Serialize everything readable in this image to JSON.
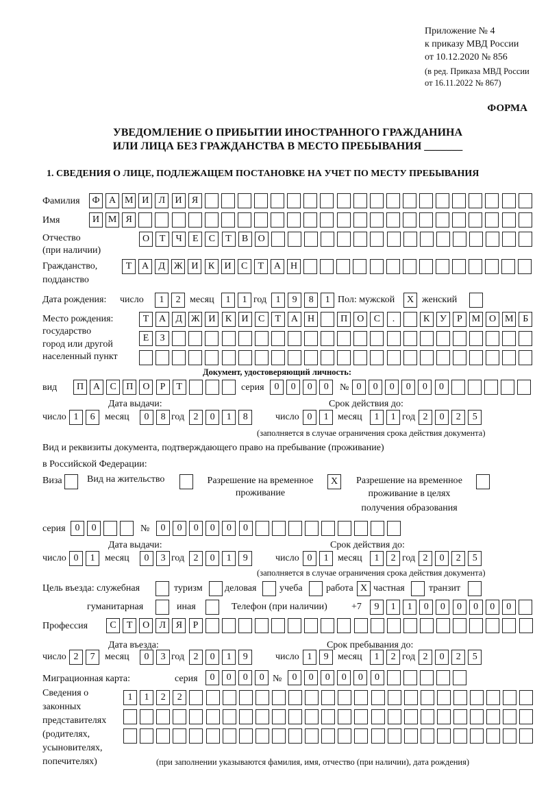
{
  "header": {
    "line1": "Приложение № 4",
    "line2": "к приказу МВД России",
    "line3": "от 10.12.2020 № 856",
    "line4": "(в ред. Приказа МВД России",
    "line5": "от 16.11.2022 № 867)"
  },
  "forma": "ФОРМА",
  "title": {
    "line1": "УВЕДОМЛЕНИЕ О ПРИБЫТИИ ИНОСТРАННОГО ГРАЖДАНИНА",
    "line2": "ИЛИ ЛИЦА БЕЗ ГРАЖДАНСТВА В МЕСТО ПРЕБЫВАНИЯ _______"
  },
  "section1": "1. СВЕДЕНИЯ О ЛИЦЕ, ПОДЛЕЖАЩЕМ ПОСТАНОВКЕ НА УЧЕТ ПО МЕСТУ ПРЕБЫВАНИЯ",
  "labels": {
    "surname": "Фамилия",
    "name": "Имя",
    "patronymic1": "Отчество",
    "patronymic2": "(при наличии)",
    "citizenship1": "Гражданство,",
    "citizenship2": "подданство",
    "birth_date": "Дата рождения:",
    "day": "число",
    "month": "месяц",
    "year": "год",
    "sex": "Пол: мужской",
    "female": "женский",
    "birthplace1": "Место рождения:",
    "birthplace2": "государство",
    "birthplace3": "город или другой",
    "birthplace4": "населенный пункт",
    "id_doc": "Документ, удостоверяющий личность:",
    "kind": "вид",
    "series": "серия",
    "number": "№",
    "issue_date": "Дата выдачи:",
    "valid_until": "Срок действия до:",
    "valid_note": "(заполняется в случае ограничения срока действия документа)",
    "right_doc1": "Вид и реквизиты документа, подтверждающего право на пребывание (проживание)",
    "right_doc2": "в Российской Федерации:",
    "visa": "Виза",
    "residence": "Вид на жительство",
    "temp1": "Разрешение на временное",
    "temp2": "проживание",
    "edu1": "Разрешение на временное",
    "edu2": "проживание в целях",
    "edu3": "получения образования",
    "purpose": "Цель въезда: служебная",
    "tourism": "туризм",
    "business": "деловая",
    "study": "учеба",
    "work": "работа",
    "private": "частная",
    "transit": "транзит",
    "humanitarian": "гуманитарная",
    "other": "иная",
    "phone": "Телефон (при наличии)",
    "phone_prefix": "+7",
    "profession": "Профессия",
    "entry_date": "Дата въезда:",
    "stay_until": "Срок пребывания до:",
    "migration_card": "Миграционная карта:",
    "reps1": "Сведения о",
    "reps2": "законных",
    "reps3": "представителях",
    "reps4": "(родителях,",
    "reps5": "усыновителях,",
    "reps6": "попечителях)",
    "reps_note": "(при заполнении указываются фамилия, имя, отчество (при наличии), дата рождения)"
  },
  "values": {
    "surname": "ФАМИЛИЯ",
    "name": "ИМЯ",
    "patronymic": "ОТЧЕСТВО",
    "citizenship": "ТАДЖИКИСТАН",
    "birth_day": "12",
    "birth_month": "11",
    "birth_year": "1981",
    "male": "X",
    "female": "",
    "birthplace_row1": "ТАДЖИКИСТАН ПОС. КУРМОМБ",
    "birthplace_row2": "ЕЗ",
    "birthplace_row3": "",
    "doc_kind": "ПАСПОРТ",
    "doc_series": "0000",
    "doc_number": "000000",
    "doc_issue_day": "16",
    "doc_issue_month": "08",
    "doc_issue_year": "2018",
    "doc_valid_day": "01",
    "doc_valid_month": "11",
    "doc_valid_year": "2025",
    "visa": "",
    "residence": "",
    "temp_residence": "X",
    "edu_residence": "",
    "right_series": "00",
    "right_number": "000000",
    "right_issue_day": "01",
    "right_issue_month": "03",
    "right_issue_year": "2019",
    "right_valid_day": "01",
    "right_valid_month": "12",
    "right_valid_year": "2025",
    "p_service": "",
    "p_tourism": "",
    "p_business": "",
    "p_study": "",
    "p_work": "X",
    "p_private": "",
    "p_transit": "",
    "p_humanitarian": "",
    "p_other": "",
    "phone": "911000000",
    "profession": "СТОЛЯР",
    "entry_day": "27",
    "entry_month": "03",
    "entry_year": "2019",
    "stay_day": "19",
    "stay_month": "12",
    "stay_year": "2025",
    "mig_series": "0000",
    "mig_number": "000000",
    "reps_row1": "1122",
    "reps_row2": "",
    "reps_row3": ""
  }
}
